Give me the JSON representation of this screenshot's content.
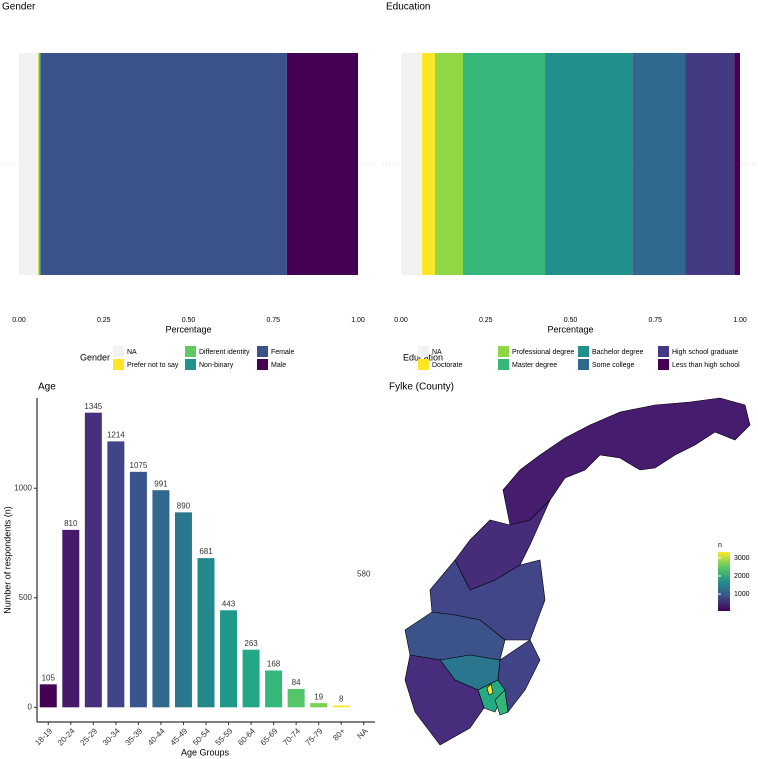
{
  "chart_data": [
    {
      "type": "stacked-bar-h",
      "title": "Gender",
      "xlabel": "Percentage",
      "legend_title": "Gender",
      "xlim": [
        0,
        1
      ],
      "xticks": [
        {
          "value": 0,
          "label": "0.00"
        },
        {
          "value": 0.25,
          "label": "0.25"
        },
        {
          "value": 0.5,
          "label": "0.50"
        },
        {
          "value": 0.75,
          "label": "0.75"
        },
        {
          "value": 1,
          "label": "1.00"
        }
      ],
      "series": [
        {
          "name": "NA",
          "color": "#f2f2f2",
          "values": [
            0.056
          ]
        },
        {
          "name": "Prefer not to say",
          "color": "#fde725",
          "values": [
            0.002
          ]
        },
        {
          "name": "Different identity",
          "color": "#5ec962",
          "values": [
            0.004
          ]
        },
        {
          "name": "Non-binary",
          "color": "#21918c",
          "values": [
            0.002
          ]
        },
        {
          "name": "Female",
          "color": "#3b528b",
          "values": [
            0.726
          ]
        },
        {
          "name": "Male",
          "color": "#440154",
          "values": [
            0.21
          ]
        }
      ]
    },
    {
      "type": "stacked-bar-h",
      "title": "Education",
      "xlabel": "Percentage",
      "legend_title": "Education",
      "xlim": [
        0,
        1
      ],
      "xticks": [
        {
          "value": 0,
          "label": "0.00"
        },
        {
          "value": 0.25,
          "label": "0.25"
        },
        {
          "value": 0.5,
          "label": "0.50"
        },
        {
          "value": 0.75,
          "label": "0.75"
        },
        {
          "value": 1,
          "label": "1.00"
        }
      ],
      "series": [
        {
          "name": "NA",
          "color": "#f2f2f2",
          "values": [
            0.062
          ]
        },
        {
          "name": "Doctorate",
          "color": "#fde725",
          "values": [
            0.038
          ]
        },
        {
          "name": "Professional degree",
          "color": "#8fd744",
          "values": [
            0.083
          ]
        },
        {
          "name": "Master degree",
          "color": "#35b779",
          "values": [
            0.242
          ]
        },
        {
          "name": "Bachelor degree",
          "color": "#21908d",
          "values": [
            0.257
          ]
        },
        {
          "name": "Some college",
          "color": "#31688e",
          "values": [
            0.156
          ]
        },
        {
          "name": "High school graduate",
          "color": "#443a83",
          "values": [
            0.145
          ]
        },
        {
          "name": "Less than high school",
          "color": "#440154",
          "values": [
            0.017
          ]
        }
      ]
    },
    {
      "type": "bar",
      "title": "Age",
      "xlabel": "Age Groups",
      "ylabel": "Number of respondents (n)",
      "categories": [
        "18-19",
        "20-24",
        "25-29",
        "30-34",
        "35-39",
        "40-44",
        "45-49",
        "50-54",
        "55-59",
        "60-64",
        "65-69",
        "70-74",
        "75-79",
        "80+",
        "NA"
      ],
      "values": [
        105,
        810,
        1345,
        1214,
        1075,
        991,
        890,
        681,
        443,
        263,
        168,
        84,
        19,
        8,
        580
      ],
      "colors": [
        "#440154",
        "#481a6c",
        "#472f7d",
        "#414487",
        "#39568c",
        "#31688e",
        "#2a788e",
        "#23888e",
        "#1f988b",
        "#22a884",
        "#35b779",
        "#54c568",
        "#7ad151",
        "#fde725",
        "none"
      ],
      "ylim": [
        -67,
        1412
      ],
      "yticks": [
        0,
        500,
        1000
      ]
    },
    {
      "type": "choropleth",
      "title": "Fylke (County)",
      "legend_title": "n",
      "colorbar_lim": [
        60,
        3330
      ],
      "colorbar_ticks": [
        1000,
        2000,
        3000
      ],
      "colorbar_colors": [
        "#440154",
        "#3b528b",
        "#21918c",
        "#5ec962",
        "#fde725"
      ]
    }
  ]
}
